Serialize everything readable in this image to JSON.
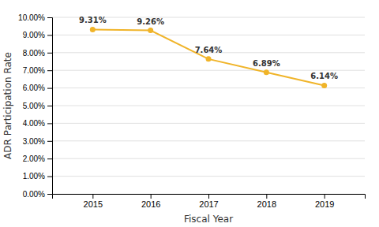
{
  "chart_data": {
    "type": "line",
    "x": [
      2015,
      2016,
      2017,
      2018,
      2019
    ],
    "values": [
      0.0931,
      0.0926,
      0.0764,
      0.0689,
      0.0614
    ],
    "value_labels": [
      "9.31%",
      "9.26%",
      "7.64%",
      "6.89%",
      "6.14%"
    ],
    "data_labels": true,
    "color": "#F0B429",
    "marker": "circle",
    "xlabel": "Fiscal Year",
    "ylabel": "ADR Participation Rate",
    "xlim": [
      2014.3,
      2019.7
    ],
    "xticks": [
      2015,
      2016,
      2017,
      2018,
      2019
    ],
    "ylim": [
      0.0,
      0.1
    ],
    "yticks": [
      {
        "value": 0.0,
        "label": "0.00%"
      },
      {
        "value": 0.01,
        "label": "1.00%"
      },
      {
        "value": 0.02,
        "label": "2.00%"
      },
      {
        "value": 0.03,
        "label": "3.00%"
      },
      {
        "value": 0.04,
        "label": "4.00%"
      },
      {
        "value": 0.05,
        "label": "5.00%"
      },
      {
        "value": 0.06,
        "label": "6.00%"
      },
      {
        "value": 0.07,
        "label": "7.00%"
      },
      {
        "value": 0.08,
        "label": "8.00%"
      },
      {
        "value": 0.09,
        "label": "9.00%"
      },
      {
        "value": 0.1,
        "label": "10.00%"
      }
    ],
    "grid": "y"
  }
}
